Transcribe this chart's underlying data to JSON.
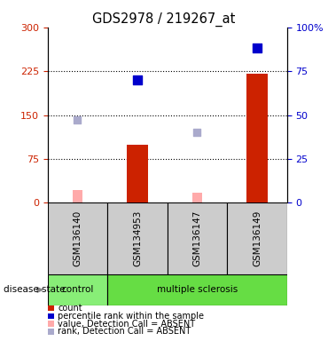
{
  "title": "GDS2978 / 219267_at",
  "samples": [
    "GSM136140",
    "GSM134953",
    "GSM136147",
    "GSM136149"
  ],
  "red_bars": [
    0,
    100,
    0,
    220
  ],
  "pink_bars": [
    22,
    0,
    18,
    0
  ],
  "blue_squares": [
    null,
    210,
    null,
    265
  ],
  "lavender_squares": [
    142,
    null,
    120,
    null
  ],
  "ylim_left": [
    0,
    300
  ],
  "ylim_right": [
    0,
    100
  ],
  "left_yticks": [
    0,
    75,
    150,
    225,
    300
  ],
  "right_yticks": [
    0,
    25,
    50,
    75,
    100
  ],
  "right_yticklabels": [
    "0",
    "25",
    "50",
    "75",
    "100%"
  ],
  "hline_values": [
    75,
    150,
    225
  ],
  "left_color": "#cc2200",
  "right_color": "#0000cc",
  "red_bar_color": "#cc2200",
  "pink_bar_color": "#ffaaaa",
  "blue_sq_color": "#0000cc",
  "lavender_sq_color": "#aaaacc",
  "control_color": "#88ee77",
  "ms_color": "#66dd44",
  "sample_bg_color": "#cccccc",
  "legend_items": [
    {
      "color": "#cc2200",
      "label": "count"
    },
    {
      "color": "#0000cc",
      "label": "percentile rank within the sample"
    },
    {
      "color": "#ffaaaa",
      "label": "value, Detection Call = ABSENT"
    },
    {
      "color": "#aaaacc",
      "label": "rank, Detection Call = ABSENT"
    }
  ]
}
